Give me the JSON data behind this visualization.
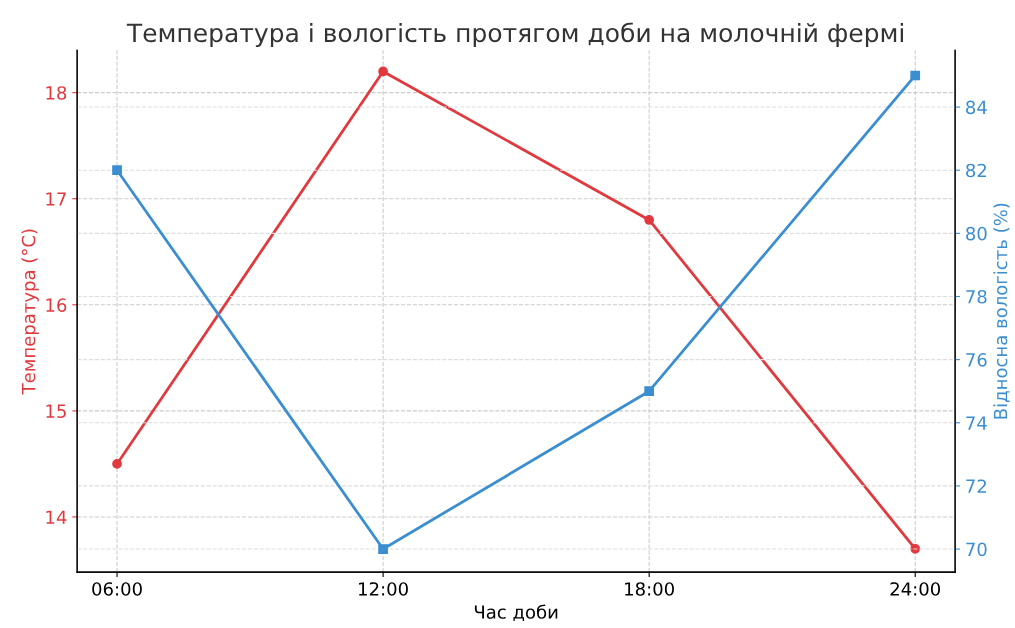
{
  "chart_data": {
    "type": "line",
    "title": "Температура і вологість протягом доби на молочній фермі",
    "xlabel": "Час доби",
    "ylabel": "Температура (°C)",
    "y2label": "Відносна вологість (%)",
    "categories": [
      "06:00",
      "12:00",
      "18:00",
      "24:00"
    ],
    "series": [
      {
        "color": "#e0393e",
        "marker": "circle",
        "values": [
          14.5,
          18.2,
          16.8,
          13.7
        ]
      },
      {
        "color": "#3b8ed0",
        "marker": "square",
        "axis": "y2",
        "values": [
          82,
          70,
          75,
          85
        ]
      }
    ],
    "ylim": [
      13.48,
      18.4
    ],
    "yticks": [
      14,
      15,
      16,
      17,
      18
    ],
    "y2lim": [
      69.27,
      85.8
    ],
    "y2ticks": [
      70,
      72,
      74,
      76,
      78,
      80,
      82,
      84
    ],
    "grid": true,
    "legend": false,
    "line_style": "solid"
  }
}
